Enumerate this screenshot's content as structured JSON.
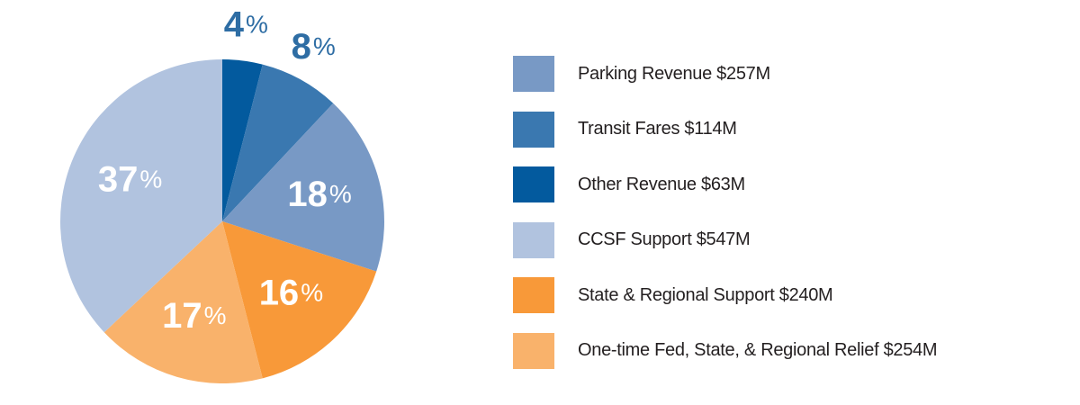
{
  "chart_data": {
    "type": "pie",
    "start_angle_deg": 0,
    "direction": "clockwise",
    "slices": [
      {
        "label": "Other Revenue $63M",
        "value": 4,
        "display": "4",
        "color": "#035a9e",
        "label_color": "#2e6da4",
        "label_outside": true
      },
      {
        "label": "Transit Fares $114M",
        "value": 8,
        "display": "8",
        "color": "#3a78b0",
        "label_color": "#2e6da4",
        "label_outside": true
      },
      {
        "label": "Parking Revenue $257M",
        "value": 18,
        "display": "18",
        "color": "#7899c5",
        "label_color": "#ffffff",
        "label_outside": false
      },
      {
        "label": "State & Regional Support $240M",
        "value": 16,
        "display": "16",
        "color": "#f89939",
        "label_color": "#ffffff",
        "label_outside": false
      },
      {
        "label": "One-time Fed, State, & Regional Relief $254M",
        "value": 17,
        "display": "17",
        "color": "#f9b26b",
        "label_color": "#ffffff",
        "label_outside": false
      },
      {
        "label": "CCSF Support $547M",
        "value": 37,
        "display": "37",
        "color": "#b1c3df",
        "label_color": "#ffffff",
        "label_outside": false
      }
    ],
    "percent_sign": "%"
  },
  "legend": {
    "items": [
      {
        "label": "Parking Revenue $257M",
        "color": "#7899c5"
      },
      {
        "label": "Transit Fares $114M",
        "color": "#3a78b0"
      },
      {
        "label": "Other Revenue $63M",
        "color": "#035a9e"
      },
      {
        "label": "CCSF Support $547M",
        "color": "#b1c3df"
      },
      {
        "label": "State & Regional Support $240M",
        "color": "#f89939"
      },
      {
        "label": "One-time Fed, State, & Regional Relief $254M",
        "color": "#f9b26b"
      }
    ]
  }
}
